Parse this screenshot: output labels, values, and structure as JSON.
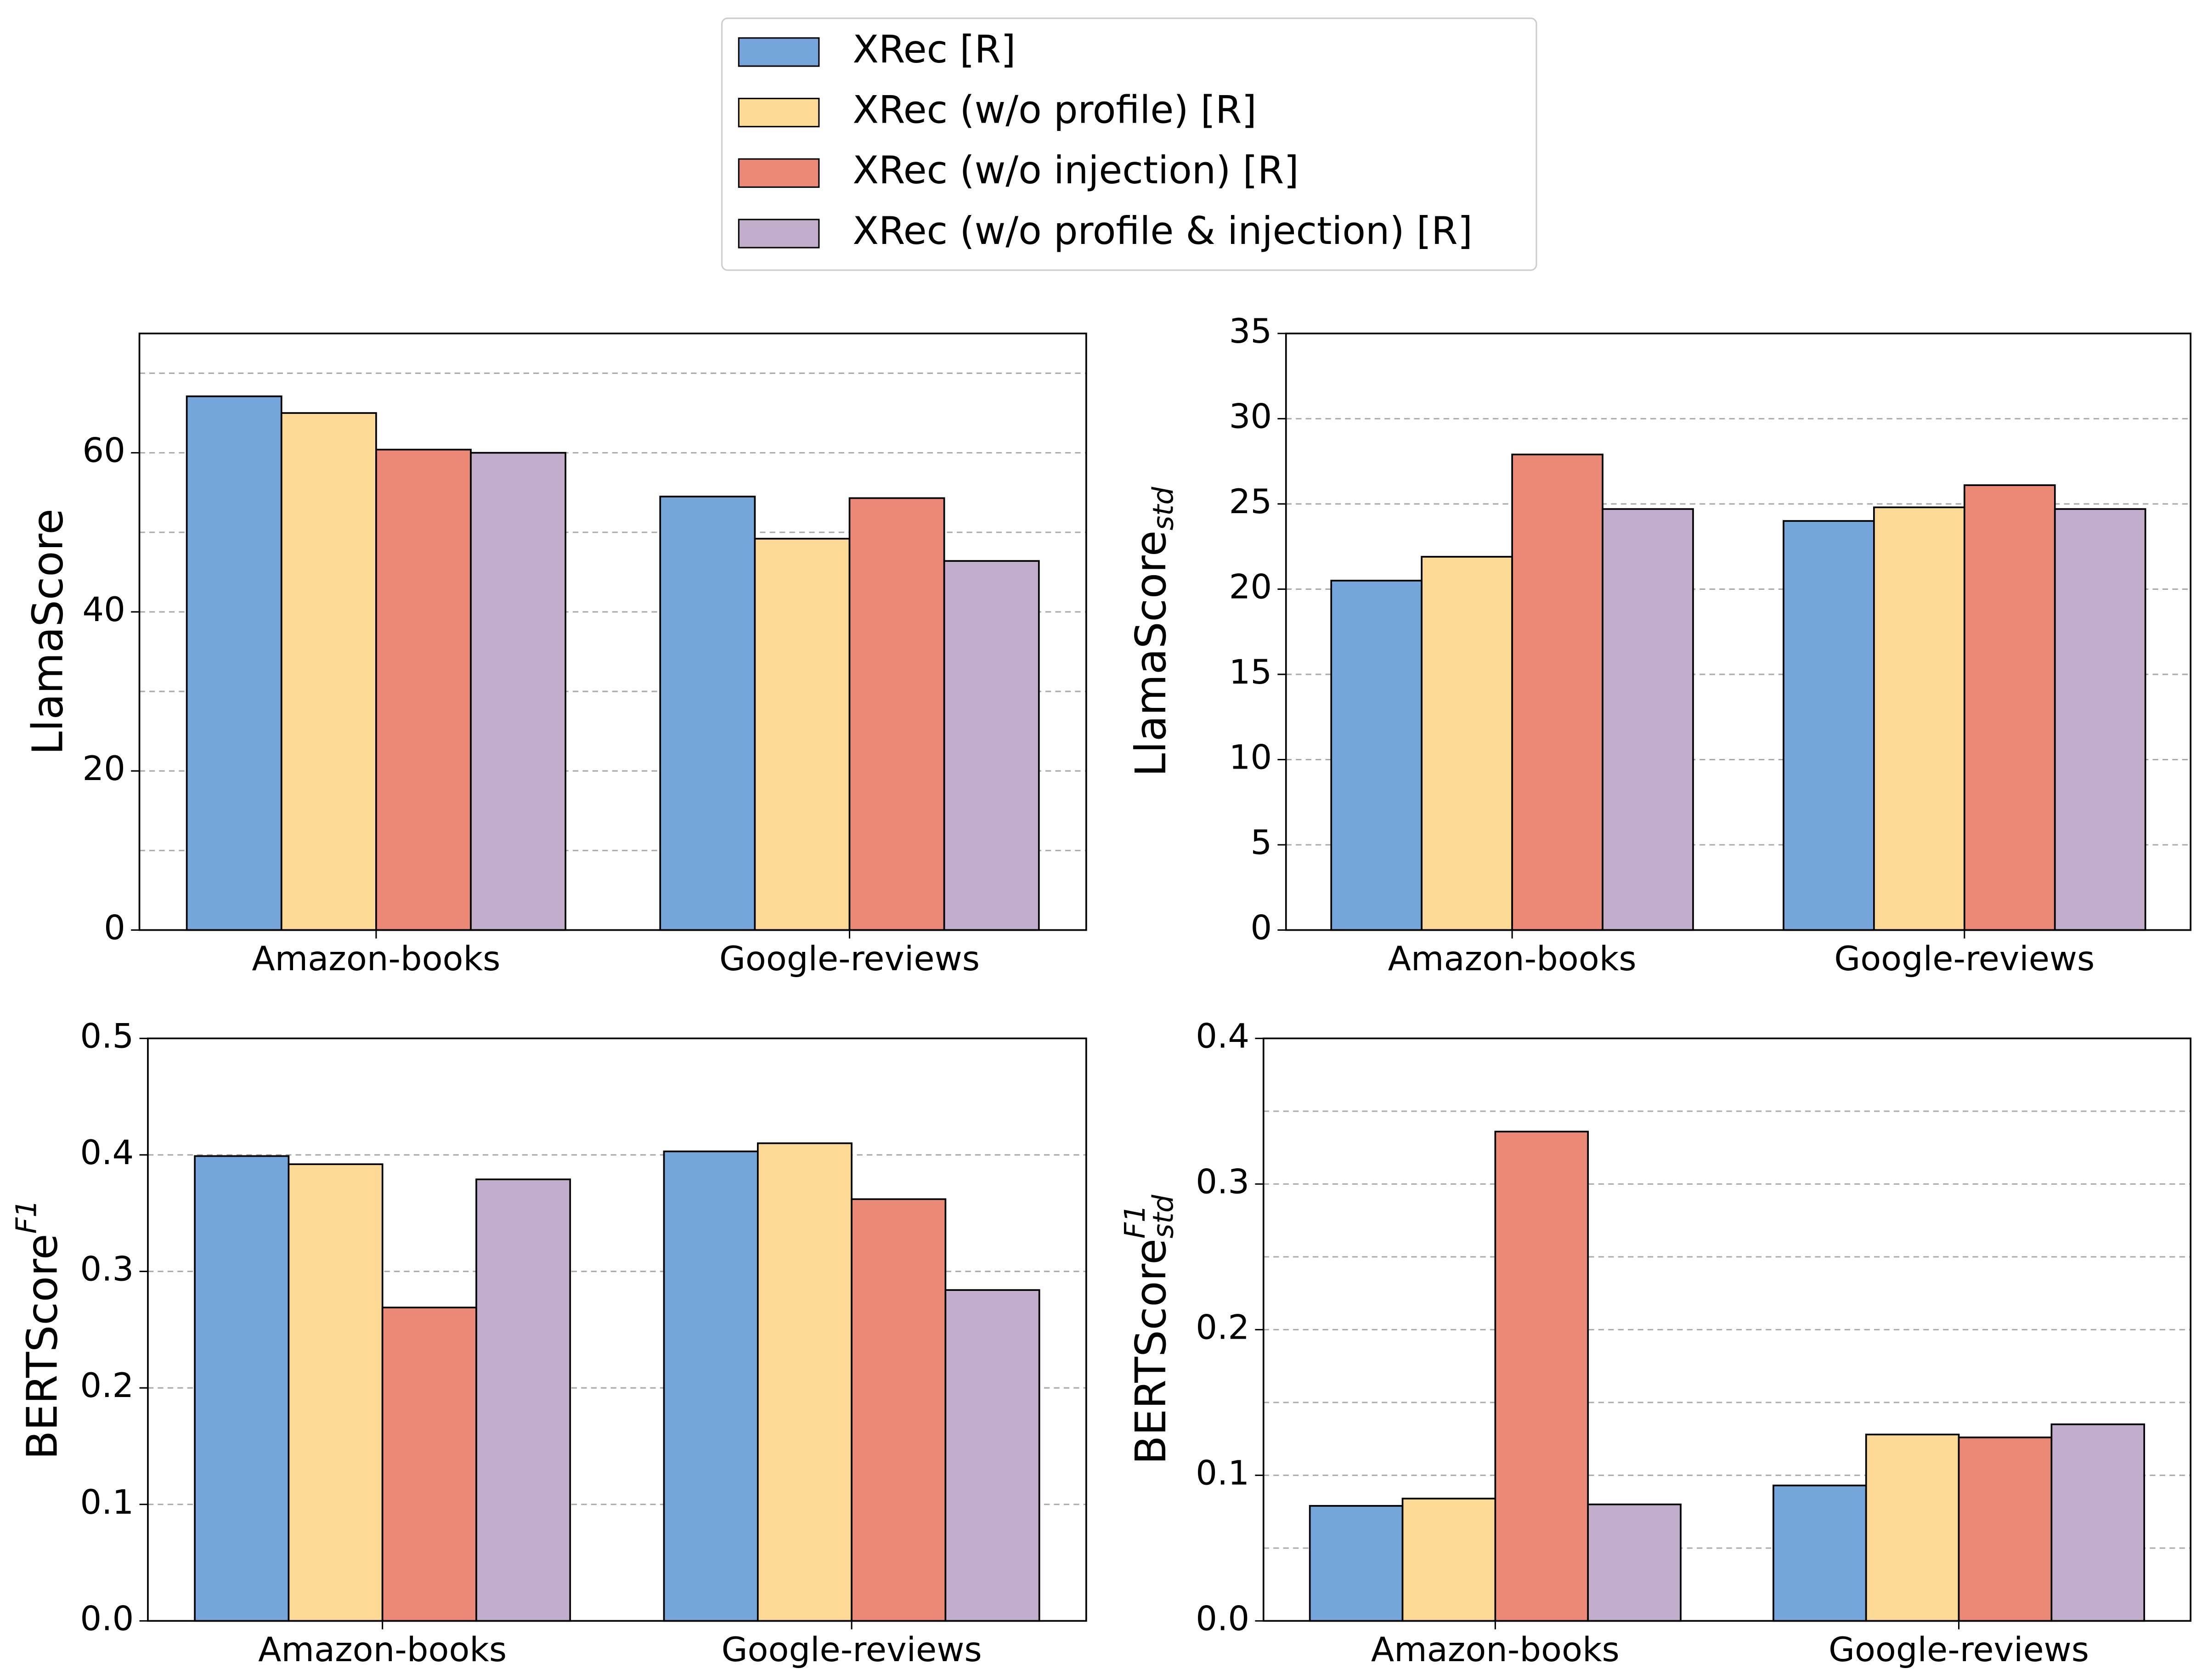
{
  "chart_data": [
    {
      "type": "bar",
      "ylabel": "LlamaScore",
      "categories": [
        "Amazon-books",
        "Google-reviews"
      ],
      "series": [
        {
          "name": "XRec [R]",
          "color": "#74a5db",
          "values": [
            67.1,
            54.5
          ]
        },
        {
          "name": "XRec (w/o profile) [R]",
          "color": "#fcd994",
          "values": [
            65.0,
            49.2
          ]
        },
        {
          "name": "XRec (w/o injection) [R]",
          "color": "#ec8876",
          "values": [
            60.4,
            54.3
          ]
        },
        {
          "name": "XRec (w/o profile & injection) [R]",
          "color": "#c3adcc",
          "values": [
            60.0,
            46.4
          ]
        }
      ],
      "ylim": [
        0,
        75
      ],
      "yticks": [
        0,
        20,
        40,
        60
      ],
      "minor_yticks": [
        10,
        30,
        50,
        70
      ],
      "grid": true
    },
    {
      "type": "bar",
      "ylabel": "LlamaScore",
      "ylabel_sub": "std",
      "categories": [
        "Amazon-books",
        "Google-reviews"
      ],
      "series": [
        {
          "color": "#74a5db",
          "values": [
            20.5,
            24.0
          ]
        },
        {
          "color": "#fcd994",
          "values": [
            21.9,
            24.8
          ]
        },
        {
          "color": "#ec8876",
          "values": [
            27.9,
            26.1
          ]
        },
        {
          "color": "#c3adcc",
          "values": [
            24.7,
            24.7
          ]
        }
      ],
      "ylim": [
        0,
        35
      ],
      "yticks": [
        0,
        5,
        10,
        15,
        20,
        25,
        30,
        35
      ],
      "minor_yticks": [],
      "grid": true
    },
    {
      "type": "bar",
      "ylabel": "BERTScore",
      "ylabel_sup": "F1",
      "categories": [
        "Amazon-books",
        "Google-reviews"
      ],
      "series": [
        {
          "color": "#74a5db",
          "values": [
            0.399,
            0.403
          ]
        },
        {
          "color": "#fcd994",
          "values": [
            0.392,
            0.41
          ]
        },
        {
          "color": "#ec8876",
          "values": [
            0.269,
            0.362
          ]
        },
        {
          "color": "#c3adcc",
          "values": [
            0.379,
            0.284
          ]
        }
      ],
      "ylim": [
        0,
        0.5
      ],
      "yticks": [
        {
          "value": 0,
          "label": "0.0"
        },
        0.1,
        0.2,
        0.3,
        0.4,
        0.5
      ],
      "minor_yticks": [],
      "grid": true
    },
    {
      "type": "bar",
      "ylabel": "BERTScore",
      "ylabel_sup": "F1",
      "ylabel_sub": "std",
      "categories": [
        "Amazon-books",
        "Google-reviews"
      ],
      "series": [
        {
          "color": "#74a5db",
          "values": [
            0.079,
            0.093
          ]
        },
        {
          "color": "#fcd994",
          "values": [
            0.084,
            0.128
          ]
        },
        {
          "color": "#ec8876",
          "values": [
            0.336,
            0.126
          ]
        },
        {
          "color": "#c3adcc",
          "values": [
            0.08,
            0.135
          ]
        }
      ],
      "ylim": [
        0,
        0.4
      ],
      "yticks": [
        {
          "value": 0,
          "label": "0.0"
        },
        0.1,
        0.2,
        0.3,
        0.4
      ],
      "minor_yticks": [
        0.05,
        0.15,
        0.25,
        0.35
      ],
      "grid": true
    }
  ]
}
